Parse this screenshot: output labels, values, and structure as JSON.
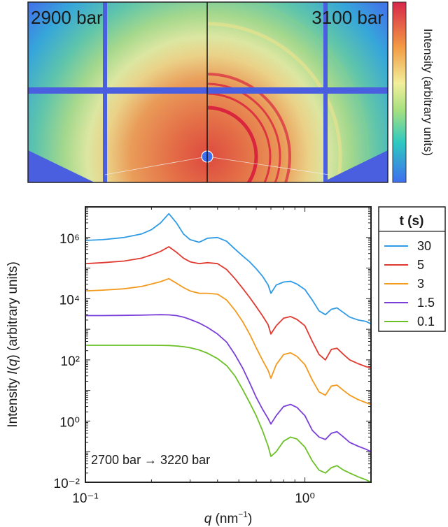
{
  "detector": {
    "left_label": "2900 bar",
    "right_label": "3100 bar",
    "colorbar_label": "Intensity (arbitrary units)",
    "colors": {
      "low": "#3f6ef0",
      "mid_low": "#2ec9c0",
      "mid": "#f2ef9a",
      "mid_high": "#f39b45",
      "high": "#d7264a",
      "mask": "#4a5fe0"
    }
  },
  "chart_data": {
    "type": "line",
    "title": "",
    "xlabel": "q (nm⁻¹)",
    "ylabel": "Intensity I(q) (arbitrary units)",
    "xscale": "log",
    "yscale": "log",
    "xlim": [
      0.1,
      2.0
    ],
    "ylim": [
      0.01,
      10000000
    ],
    "x_ticks": [
      {
        "value": 0.1,
        "label": "10⁻¹"
      },
      {
        "value": 1,
        "label": "10⁰"
      }
    ],
    "y_ticks": [
      {
        "value": 0.01,
        "label": "10⁻²"
      },
      {
        "value": 1,
        "label": "10⁰"
      },
      {
        "value": 100,
        "label": "10²"
      },
      {
        "value": 10000,
        "label": "10⁴"
      },
      {
        "value": 1000000,
        "label": "10⁶"
      }
    ],
    "annotation": "2700 bar → 3220 bar",
    "legend": {
      "title": "t (s)",
      "position": "outside-right"
    },
    "x": [
      0.1,
      0.12,
      0.15,
      0.18,
      0.2,
      0.22,
      0.24,
      0.26,
      0.28,
      0.3,
      0.33,
      0.36,
      0.4,
      0.44,
      0.48,
      0.52,
      0.56,
      0.6,
      0.64,
      0.68,
      0.7,
      0.74,
      0.8,
      0.86,
      0.92,
      1.0,
      1.08,
      1.16,
      1.24,
      1.32,
      1.4,
      1.5,
      1.6,
      1.75,
      1.9,
      2.0
    ],
    "series": [
      {
        "name": "30",
        "color": "#2f9be6",
        "values": [
          800000,
          850000,
          1000000,
          1300000,
          1800000,
          3000000,
          6000000,
          3000000,
          1300000,
          850000,
          700000,
          950000,
          1000000,
          750000,
          420000,
          250000,
          160000,
          95000,
          55000,
          28000,
          15000,
          28000,
          35000,
          37000,
          30000,
          20000,
          9000,
          4000,
          3000,
          4500,
          5000,
          3500,
          2500,
          2000,
          1800,
          1500
        ]
      },
      {
        "name": "5",
        "color": "#e03a30",
        "values": [
          140000,
          150000,
          170000,
          210000,
          270000,
          350000,
          500000,
          330000,
          210000,
          160000,
          140000,
          150000,
          140000,
          90000,
          45000,
          22000,
          11000,
          5500,
          2800,
          1400,
          700,
          1300,
          2300,
          2600,
          2100,
          1300,
          400,
          150,
          100,
          220,
          240,
          150,
          100,
          75,
          60,
          55
        ]
      },
      {
        "name": "3",
        "color": "#f39a1e",
        "values": [
          18000,
          19000,
          21000,
          25000,
          30000,
          36000,
          45000,
          32000,
          23000,
          18000,
          15000,
          15000,
          14000,
          9000,
          4200,
          1800,
          700,
          250,
          100,
          45,
          25,
          70,
          150,
          170,
          130,
          70,
          22,
          9,
          7,
          14,
          15,
          10,
          7,
          5,
          4,
          3.5
        ]
      },
      {
        "name": "1.5",
        "color": "#7a3fd8",
        "values": [
          2800,
          2800,
          2850,
          2900,
          2950,
          3000,
          2950,
          2800,
          2500,
          2100,
          1600,
          1150,
          700,
          380,
          150,
          55,
          18,
          6,
          2.5,
          1.2,
          0.8,
          1.5,
          3.0,
          3.5,
          2.8,
          1.5,
          0.5,
          0.3,
          0.25,
          0.4,
          0.45,
          0.3,
          0.2,
          0.15,
          0.12,
          0.1
        ]
      },
      {
        "name": "0.1",
        "color": "#6cc028",
        "values": [
          300,
          300,
          300,
          300,
          300,
          298,
          295,
          285,
          270,
          250,
          210,
          165,
          110,
          65,
          30,
          11,
          4,
          1.5,
          0.5,
          0.15,
          0.07,
          0.1,
          0.22,
          0.3,
          0.26,
          0.14,
          0.05,
          0.025,
          0.02,
          0.03,
          0.035,
          0.025,
          0.02,
          0.015,
          0.012,
          0.01
        ]
      }
    ]
  }
}
